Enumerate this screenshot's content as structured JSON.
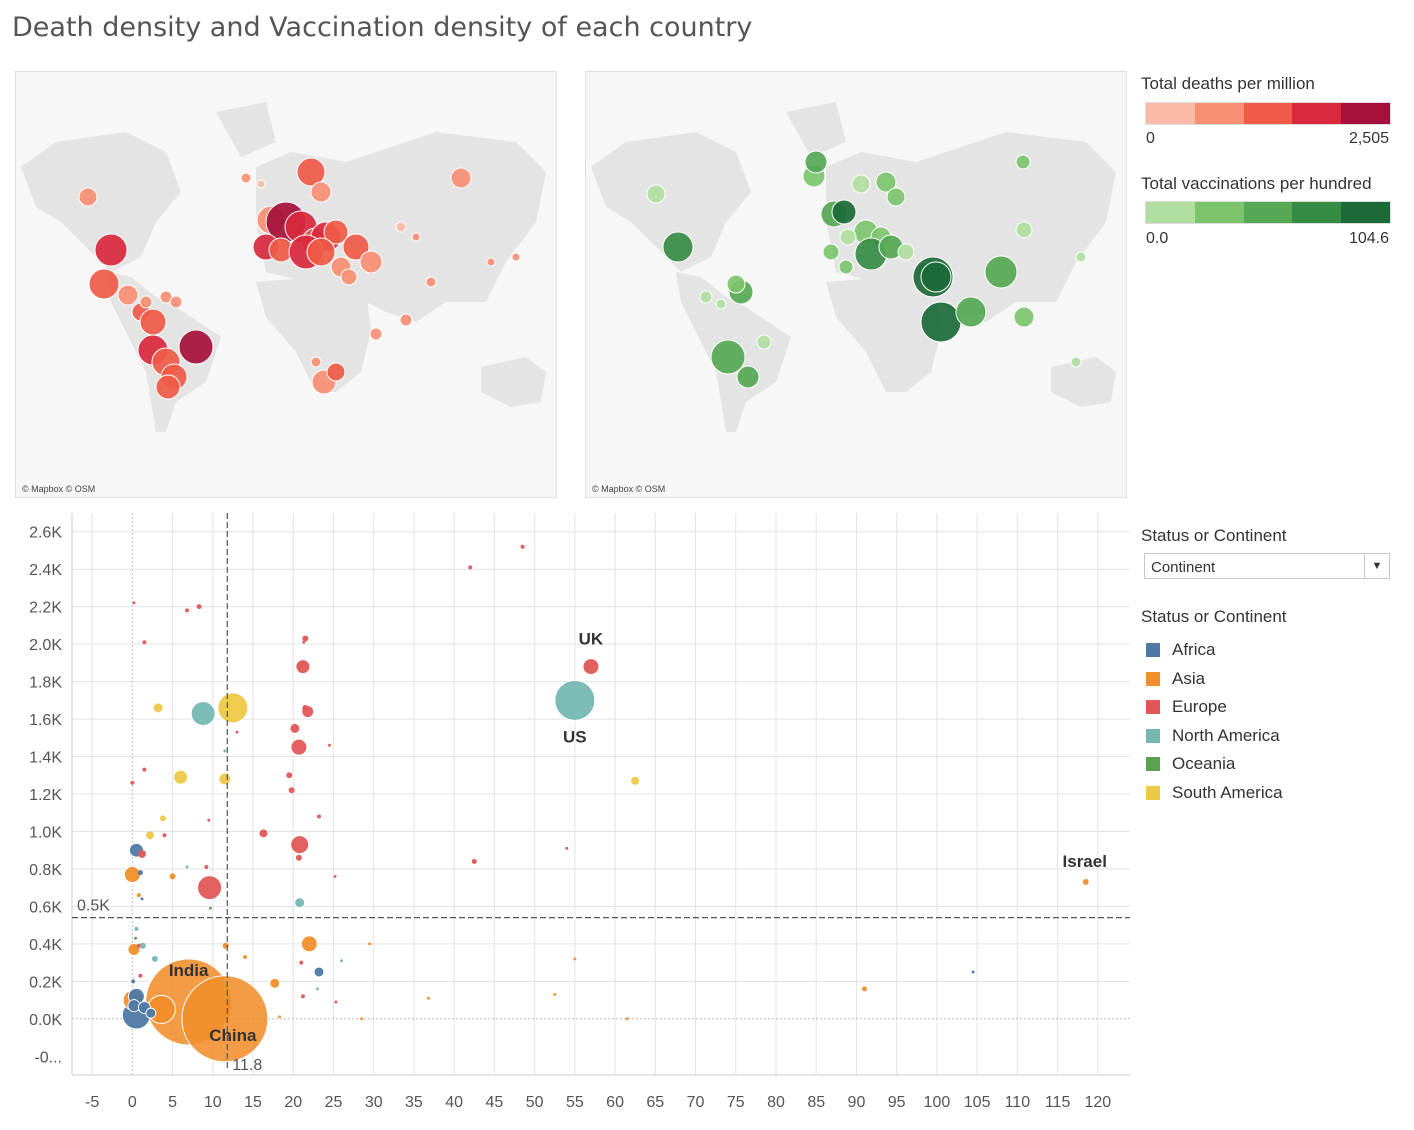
{
  "title": "Death density and Vaccination density of each country",
  "map_attribution": "© Mapbox © OSM",
  "deaths_legend": {
    "title": "Total deaths per million",
    "min": "0",
    "max": "2,505",
    "colors": [
      "#fcbba8",
      "#f88f73",
      "#ef5b47",
      "#d9283d",
      "#a50f3a"
    ]
  },
  "vacc_legend": {
    "title": "Total vaccinations per hundred",
    "min": "0.0",
    "max": "104.6",
    "colors": [
      "#b0dea0",
      "#7cc46c",
      "#55a854",
      "#378c45",
      "#1b6a37"
    ]
  },
  "filter": {
    "title": "Status or Continent",
    "value": "Continent"
  },
  "color_legend": {
    "title": "Status or Continent",
    "items": [
      {
        "label": "Africa",
        "color": "#4e79a7"
      },
      {
        "label": "Asia",
        "color": "#f28e2b"
      },
      {
        "label": "Europe",
        "color": "#e15759"
      },
      {
        "label": "North America",
        "color": "#76b7b2"
      },
      {
        "label": "Oceania",
        "color": "#59a14f"
      },
      {
        "label": "South America",
        "color": "#edc948"
      }
    ]
  },
  "chart_data": {
    "type": "scatter",
    "xlim": [
      -7.5,
      124
    ],
    "ylim": [
      -300,
      2700
    ],
    "x_ticks": [
      -5,
      0,
      5,
      10,
      15,
      20,
      25,
      30,
      35,
      40,
      45,
      50,
      55,
      60,
      65,
      70,
      75,
      80,
      85,
      90,
      95,
      100,
      105,
      110,
      115,
      120
    ],
    "y_ticks": [
      0,
      200,
      400,
      600,
      800,
      1000,
      1200,
      1400,
      1600,
      1800,
      2000,
      2200,
      2400,
      2600
    ],
    "y_tick_labels": [
      "0.0K",
      "0.2K",
      "0.4K",
      "0.6K",
      "0.8K",
      "1.0K",
      "1.2K",
      "1.4K",
      "1.6K",
      "1.8K",
      "2.0K",
      "2.2K",
      "2.4K",
      "2.6K"
    ],
    "y_bottom_label": "-0...",
    "ref_lines": {
      "x": 11.8,
      "x_label": "11.8",
      "y": 540,
      "y_label": "0.5K"
    },
    "points": [
      {
        "c": "Asia",
        "x": 7,
        "y": 90,
        "r": 43,
        "label": "India"
      },
      {
        "c": "Asia",
        "x": 11.5,
        "y": 0,
        "r": 43,
        "label": "China"
      },
      {
        "c": "North America",
        "x": 55,
        "y": 1700,
        "r": 20,
        "label": "US"
      },
      {
        "c": "Europe",
        "x": 57,
        "y": 1880,
        "r": 8,
        "label": "UK"
      },
      {
        "c": "Asia",
        "x": 118.5,
        "y": 730,
        "r": 3,
        "label": "Israel"
      },
      {
        "c": "North America",
        "x": 8.8,
        "y": 1630,
        "r": 12
      },
      {
        "c": "South America",
        "x": 12.5,
        "y": 1660,
        "r": 15
      },
      {
        "c": "South America",
        "x": 3.2,
        "y": 1660,
        "r": 5
      },
      {
        "c": "South America",
        "x": 6,
        "y": 1290,
        "r": 7
      },
      {
        "c": "South America",
        "x": 11.5,
        "y": 1280,
        "r": 6
      },
      {
        "c": "South America",
        "x": 2.2,
        "y": 980,
        "r": 4
      },
      {
        "c": "South America",
        "x": 3.8,
        "y": 1070,
        "r": 3
      },
      {
        "c": "South America",
        "x": 62.5,
        "y": 1270,
        "r": 4
      },
      {
        "c": "Europe",
        "x": 21.2,
        "y": 1880,
        "r": 7
      },
      {
        "c": "Europe",
        "x": 21.8,
        "y": 1640,
        "r": 6
      },
      {
        "c": "Europe",
        "x": 20.2,
        "y": 1550,
        "r": 5
      },
      {
        "c": "Europe",
        "x": 20.7,
        "y": 1450,
        "r": 8
      },
      {
        "c": "Europe",
        "x": 20.8,
        "y": 930,
        "r": 9
      },
      {
        "c": "Europe",
        "x": 9.6,
        "y": 700,
        "r": 12
      },
      {
        "c": "Europe",
        "x": 16.3,
        "y": 990,
        "r": 4
      },
      {
        "c": "Europe",
        "x": 20.7,
        "y": 860,
        "r": 3
      },
      {
        "c": "Europe",
        "x": 21.5,
        "y": 2030,
        "r": 3
      },
      {
        "c": "Europe",
        "x": 21.5,
        "y": 1660,
        "r": 3
      },
      {
        "c": "Europe",
        "x": 19.5,
        "y": 1300,
        "r": 3
      },
      {
        "c": "Europe",
        "x": 19.8,
        "y": 1220,
        "r": 3
      },
      {
        "c": "Europe",
        "x": 42,
        "y": 2410,
        "r": 2
      },
      {
        "c": "Europe",
        "x": 48.5,
        "y": 2520,
        "r": 2
      },
      {
        "c": "Europe",
        "x": 42.5,
        "y": 840,
        "r": 2.5
      },
      {
        "c": "Europe",
        "x": 8.3,
        "y": 2200,
        "r": 2.5
      },
      {
        "c": "Europe",
        "x": 6.8,
        "y": 2180,
        "r": 2
      },
      {
        "c": "Europe",
        "x": 1.5,
        "y": 2010,
        "r": 2
      },
      {
        "c": "Europe",
        "x": 0.2,
        "y": 2220,
        "r": 1.5
      },
      {
        "c": "Europe",
        "x": 1.5,
        "y": 1330,
        "r": 2
      },
      {
        "c": "Europe",
        "x": 0,
        "y": 1260,
        "r": 2
      },
      {
        "c": "Europe",
        "x": 4,
        "y": 980,
        "r": 2
      },
      {
        "c": "Europe",
        "x": 9.5,
        "y": 1060,
        "r": 1.5
      },
      {
        "c": "Europe",
        "x": 23.2,
        "y": 1080,
        "r": 2
      },
      {
        "c": "Europe",
        "x": 24.5,
        "y": 1460,
        "r": 1.5
      },
      {
        "c": "Europe",
        "x": 13,
        "y": 1530,
        "r": 1.5
      },
      {
        "c": "Europe",
        "x": 9.2,
        "y": 810,
        "r": 2
      },
      {
        "c": "Europe",
        "x": 1.2,
        "y": 880,
        "r": 4
      },
      {
        "c": "Europe",
        "x": 21.3,
        "y": 2010,
        "r": 1.5
      },
      {
        "c": "Europe",
        "x": 25.2,
        "y": 760,
        "r": 1.5
      },
      {
        "c": "Europe",
        "x": 21,
        "y": 300,
        "r": 2
      },
      {
        "c": "Europe",
        "x": 21.2,
        "y": 120,
        "r": 2
      },
      {
        "c": "Europe",
        "x": 25.3,
        "y": 90,
        "r": 1.5
      },
      {
        "c": "Europe",
        "x": 54,
        "y": 910,
        "r": 1.5
      },
      {
        "c": "Europe",
        "x": 0.8,
        "y": 390,
        "r": 2
      },
      {
        "c": "Europe",
        "x": 1,
        "y": 230,
        "r": 2
      },
      {
        "c": "Africa",
        "x": 0.5,
        "y": 900,
        "r": 7
      },
      {
        "c": "Africa",
        "x": 0.5,
        "y": 120,
        "r": 8
      },
      {
        "c": "Africa",
        "x": 0.2,
        "y": 70,
        "r": 6
      },
      {
        "c": "Africa",
        "x": 0.5,
        "y": 20,
        "r": 14
      },
      {
        "c": "Africa",
        "x": 1.5,
        "y": 60,
        "r": 6
      },
      {
        "c": "Africa",
        "x": 2.3,
        "y": 30,
        "r": 5
      },
      {
        "c": "Africa",
        "x": 0.1,
        "y": 200,
        "r": 2
      },
      {
        "c": "Africa",
        "x": 23.2,
        "y": 250,
        "r": 5
      },
      {
        "c": "Africa",
        "x": 1,
        "y": 780,
        "r": 2.5
      },
      {
        "c": "Africa",
        "x": 1.2,
        "y": 640,
        "r": 1.5
      },
      {
        "c": "Africa",
        "x": 104.5,
        "y": 250,
        "r": 1.5
      },
      {
        "c": "Asia",
        "x": 0,
        "y": 770,
        "r": 8
      },
      {
        "c": "Asia",
        "x": 0.2,
        "y": 370,
        "r": 6
      },
      {
        "c": "Asia",
        "x": 3.6,
        "y": 50,
        "r": 14
      },
      {
        "c": "Asia",
        "x": 0.1,
        "y": 100,
        "r": 10
      },
      {
        "c": "Asia",
        "x": 22,
        "y": 400,
        "r": 8
      },
      {
        "c": "Asia",
        "x": 17.7,
        "y": 190,
        "r": 5
      },
      {
        "c": "Asia",
        "x": 5,
        "y": 760,
        "r": 3
      },
      {
        "c": "Asia",
        "x": 11.6,
        "y": 390,
        "r": 3
      },
      {
        "c": "Asia",
        "x": 0.8,
        "y": 660,
        "r": 2
      },
      {
        "c": "Asia",
        "x": 91,
        "y": 160,
        "r": 2.5
      },
      {
        "c": "Asia",
        "x": 52.5,
        "y": 130,
        "r": 1.5
      },
      {
        "c": "Asia",
        "x": 61.5,
        "y": 0,
        "r": 1.5
      },
      {
        "c": "Asia",
        "x": 55,
        "y": 320,
        "r": 1.5
      },
      {
        "c": "Asia",
        "x": 36.8,
        "y": 110,
        "r": 1.5
      },
      {
        "c": "Asia",
        "x": 28.5,
        "y": 0,
        "r": 1.5
      },
      {
        "c": "Asia",
        "x": 29.5,
        "y": 400,
        "r": 1.5
      },
      {
        "c": "Asia",
        "x": 14,
        "y": 330,
        "r": 2
      },
      {
        "c": "Asia",
        "x": 18.3,
        "y": 10,
        "r": 1.5
      },
      {
        "c": "North America",
        "x": 20.8,
        "y": 620,
        "r": 5
      },
      {
        "c": "North America",
        "x": 0.5,
        "y": 480,
        "r": 2
      },
      {
        "c": "North America",
        "x": 1.3,
        "y": 390,
        "r": 3
      },
      {
        "c": "North America",
        "x": 2.8,
        "y": 320,
        "r": 3
      },
      {
        "c": "North America",
        "x": 11.5,
        "y": 1430,
        "r": 1.5
      },
      {
        "c": "North America",
        "x": 6.8,
        "y": 810,
        "r": 1.5
      },
      {
        "c": "North America",
        "x": 26,
        "y": 310,
        "r": 1.5
      },
      {
        "c": "North America",
        "x": 23,
        "y": 160,
        "r": 1.5
      },
      {
        "c": "Oceania",
        "x": 9.7,
        "y": 590,
        "r": 1.5
      },
      {
        "c": "Oceania",
        "x": 0.4,
        "y": 430,
        "r": 1.5
      }
    ]
  }
}
